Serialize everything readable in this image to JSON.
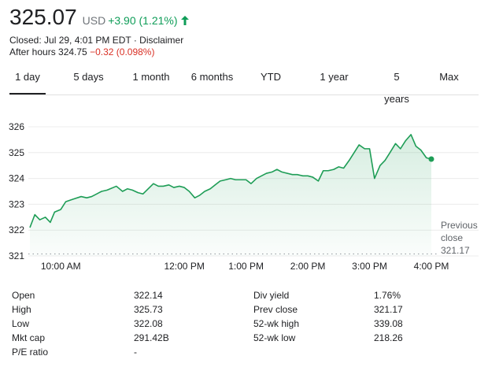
{
  "quote": {
    "price": "325.07",
    "currency": "USD",
    "change": "+3.90 (1.21%)",
    "closed_line": "Closed: Jul 29, 4:01 PM EDT · Disclaimer",
    "after_hours_label": "After hours 324.75",
    "after_hours_change": "−0.32 (0.098%)",
    "colors": {
      "up": "#0f9d58",
      "down": "#d93025",
      "line": "#1e9d56"
    }
  },
  "tabs": [
    {
      "label": "1 day",
      "active": true
    },
    {
      "label": "5 days",
      "active": false
    },
    {
      "label": "1 month",
      "active": false
    },
    {
      "label": "6 months",
      "active": false
    },
    {
      "label": "YTD",
      "active": false
    },
    {
      "label": "1 year",
      "active": false
    },
    {
      "label": "5 years",
      "active": false
    },
    {
      "label": "Max",
      "active": false
    }
  ],
  "chart_data": {
    "type": "area",
    "y_ticks": [
      "326",
      "325",
      "324",
      "323",
      "322",
      "321"
    ],
    "ylim": [
      321,
      326.3
    ],
    "x_ticks": [
      {
        "label": "10:00 AM",
        "t": 10.0
      },
      {
        "label": "12:00 PM",
        "t": 12.0
      },
      {
        "label": "1:00 PM",
        "t": 13.0
      },
      {
        "label": "2:00 PM",
        "t": 14.0
      },
      {
        "label": "3:00 PM",
        "t": 15.0
      },
      {
        "label": "4:00 PM",
        "t": 16.0
      }
    ],
    "x_range": [
      9.5,
      16.0
    ],
    "series": [
      {
        "x": [
          9.5,
          9.58,
          9.66,
          9.75,
          9.83,
          9.9,
          10.0,
          10.08,
          10.2,
          10.33,
          10.42,
          10.5,
          10.58,
          10.66,
          10.75,
          10.9,
          11.0,
          11.08,
          11.16,
          11.25,
          11.33,
          11.5,
          11.58,
          11.66,
          11.75,
          11.83,
          11.92,
          12.0,
          12.08,
          12.17,
          12.25,
          12.33,
          12.42,
          12.5,
          12.58,
          12.67,
          12.75,
          12.83,
          12.92,
          13.0,
          13.08,
          13.17,
          13.25,
          13.33,
          13.42,
          13.5,
          13.58,
          13.75,
          13.83,
          13.92,
          14.0,
          14.08,
          14.17,
          14.25,
          14.33,
          14.42,
          14.5,
          14.58,
          14.67,
          14.75,
          14.83,
          14.92,
          15.0,
          15.08,
          15.17,
          15.25,
          15.33,
          15.42,
          15.5,
          15.58,
          15.67,
          15.75,
          15.83,
          15.92,
          16.0
        ],
        "y": [
          322.1,
          322.6,
          322.4,
          322.5,
          322.3,
          322.7,
          322.8,
          323.1,
          323.2,
          323.3,
          323.25,
          323.3,
          323.4,
          323.5,
          323.55,
          323.7,
          323.5,
          323.6,
          323.55,
          323.45,
          323.4,
          323.8,
          323.7,
          323.7,
          323.75,
          323.65,
          323.7,
          323.65,
          323.5,
          323.25,
          323.35,
          323.5,
          323.6,
          323.75,
          323.9,
          323.95,
          324.0,
          323.95,
          323.95,
          323.95,
          323.8,
          324.0,
          324.1,
          324.2,
          324.25,
          324.35,
          324.25,
          324.15,
          324.15,
          324.1,
          324.1,
          324.05,
          323.9,
          324.3,
          324.3,
          324.35,
          324.45,
          324.4,
          324.7,
          325.0,
          325.3,
          325.15,
          325.15,
          324.0,
          324.5,
          324.7,
          325.0,
          325.35,
          325.15,
          325.45,
          325.7,
          325.25,
          325.1,
          324.8,
          324.75
        ]
      }
    ],
    "previous_close": {
      "label_line1": "Previous",
      "label_line2": "close",
      "value": "321.17",
      "y": 321.17
    }
  },
  "stats": {
    "left": [
      {
        "label": "Open",
        "value": "322.14"
      },
      {
        "label": "High",
        "value": "325.73"
      },
      {
        "label": "Low",
        "value": "322.08"
      },
      {
        "label": "Mkt cap",
        "value": "291.42B"
      },
      {
        "label": "P/E ratio",
        "value": "-"
      }
    ],
    "right": [
      {
        "label": "Div yield",
        "value": "1.76%"
      },
      {
        "label": "Prev close",
        "value": "321.17"
      },
      {
        "label": "52-wk high",
        "value": "339.08"
      },
      {
        "label": "52-wk low",
        "value": "218.26"
      }
    ]
  }
}
